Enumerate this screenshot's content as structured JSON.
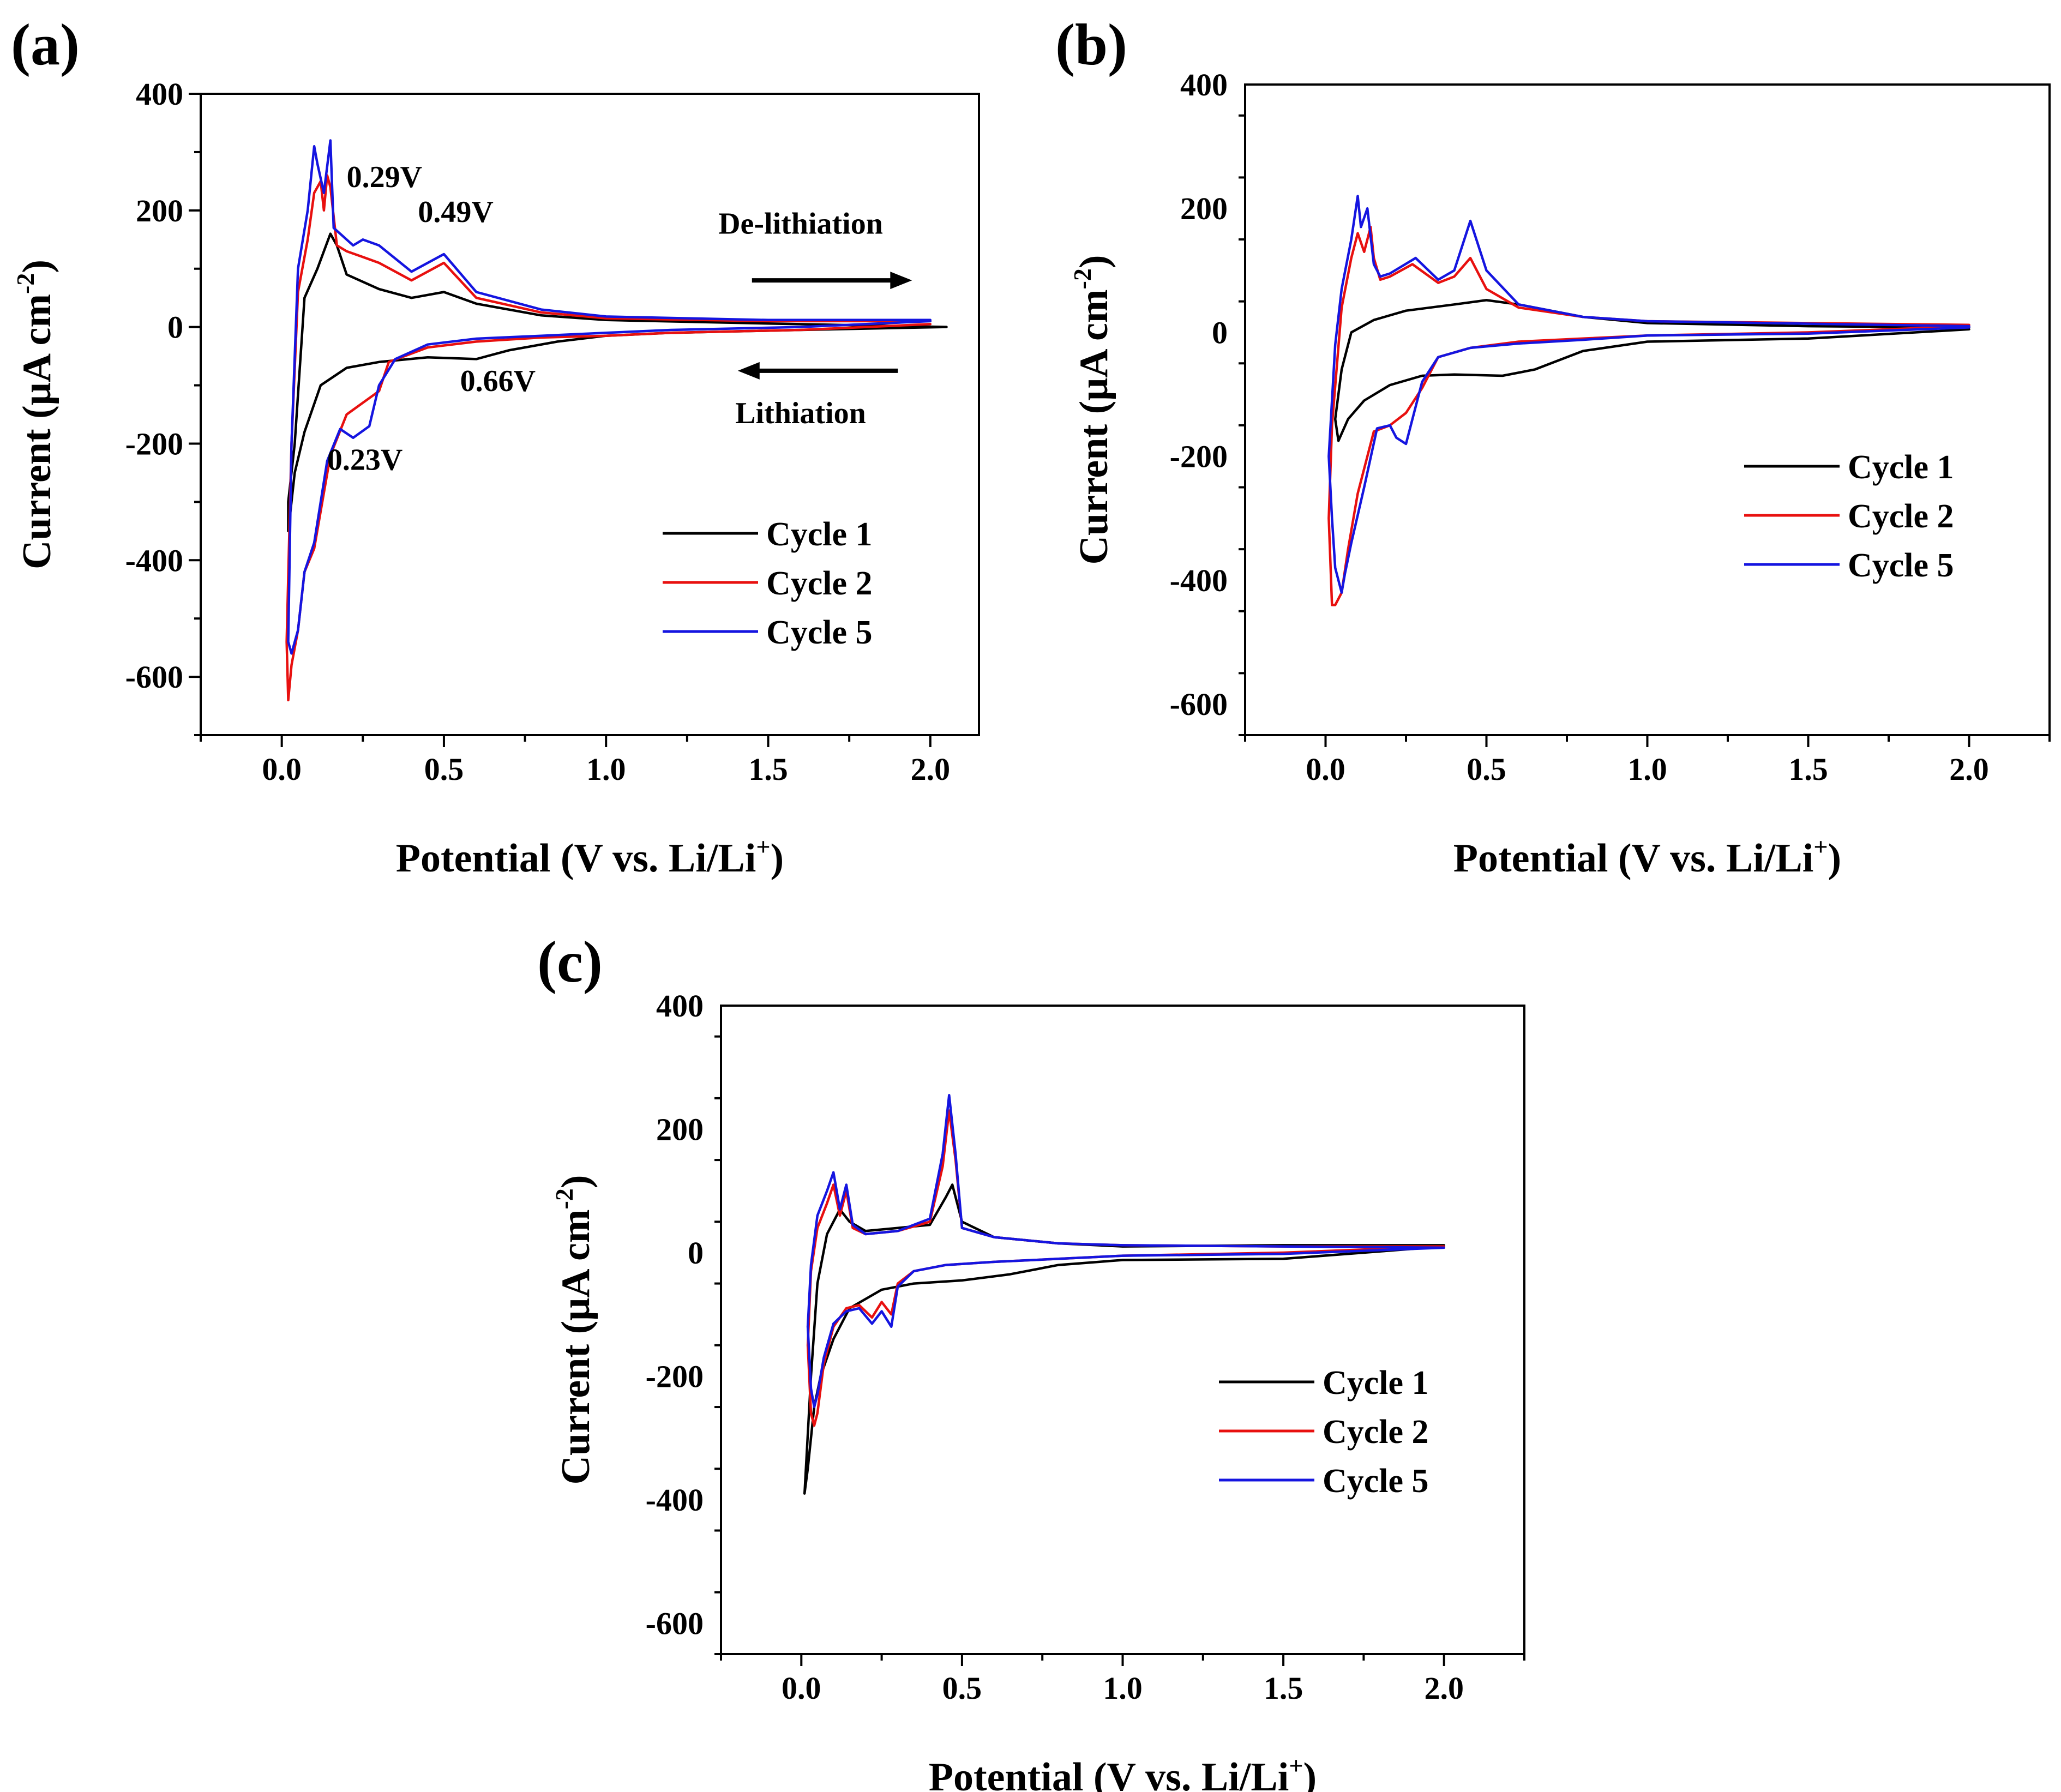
{
  "figure": {
    "x_title_prefix": "Potential (V vs. Li/Li",
    "x_title_sup": "+",
    "x_title_suffix": ")",
    "y_title_prefix": "Current (μA cm",
    "y_title_sup": "-2",
    "y_title_suffix": ")"
  },
  "colors": {
    "Cycle 1": "#000000",
    "Cycle 2": "#e8100f",
    "Cycle 5": "#1515e0"
  },
  "chart_data": [
    {
      "panel": "(a)",
      "type": "line",
      "xlabel": "Potential (V vs. Li/Li+)",
      "ylabel": "Current (μA cm-2)",
      "xlim": [
        -0.25,
        2.15
      ],
      "ylim": [
        -700,
        400
      ],
      "xticks": [
        "0.0",
        "0.5",
        "1.0",
        "1.5",
        "2.0"
      ],
      "xtick_values": [
        0,
        0.5,
        1.0,
        1.5,
        2.0
      ],
      "yticks": [
        "400",
        "200",
        "0",
        "-200",
        "-400",
        "-600"
      ],
      "ytick_values": [
        400,
        200,
        0,
        -200,
        -400,
        -600
      ],
      "legend": [
        "Cycle 1",
        "Cycle 2",
        "Cycle 5"
      ],
      "legend_position": "lower-right",
      "annotations": [
        {
          "text": "0.29V",
          "x": 0.2,
          "y": 240
        },
        {
          "text": "0.49V",
          "x": 0.42,
          "y": 180
        },
        {
          "text": "0.66V",
          "x": 0.55,
          "y": -110
        },
        {
          "text": "0.23V",
          "x": 0.14,
          "y": -245
        },
        {
          "text": "De-lithiation",
          "x": 1.6,
          "y": 160
        },
        {
          "text": "Lithiation",
          "x": 1.6,
          "y": -165
        }
      ],
      "arrows": [
        {
          "direction": "right",
          "x_from": 1.45,
          "x_to": 1.9,
          "y": 80
        },
        {
          "direction": "left",
          "x_from": 1.9,
          "x_to": 1.45,
          "y": -75
        }
      ],
      "series": [
        {
          "name": "Cycle 1",
          "x": [
            2.05,
            1.6,
            1.2,
            1.0,
            0.85,
            0.7,
            0.6,
            0.45,
            0.3,
            0.2,
            0.12,
            0.07,
            0.04,
            0.02,
            0.02,
            0.04,
            0.07,
            0.11,
            0.15,
            0.17,
            0.2,
            0.3,
            0.4,
            0.5,
            0.6,
            0.8,
            1.0,
            1.5,
            2.05
          ],
          "y": [
            0,
            -5,
            -10,
            -15,
            -25,
            -40,
            -55,
            -52,
            -60,
            -70,
            -100,
            -180,
            -250,
            -350,
            -300,
            -200,
            50,
            100,
            160,
            140,
            90,
            65,
            50,
            60,
            40,
            20,
            12,
            6,
            0
          ]
        },
        {
          "name": "Cycle 2",
          "x": [
            2.0,
            1.6,
            1.2,
            1.0,
            0.8,
            0.6,
            0.45,
            0.33,
            0.3,
            0.25,
            0.2,
            0.15,
            0.1,
            0.07,
            0.05,
            0.03,
            0.02,
            0.015,
            0.03,
            0.05,
            0.08,
            0.1,
            0.12,
            0.13,
            0.14,
            0.15,
            0.17,
            0.2,
            0.25,
            0.3,
            0.4,
            0.5,
            0.6,
            0.8,
            1.0,
            1.5,
            2.0
          ],
          "y": [
            5,
            -5,
            -10,
            -15,
            -18,
            -25,
            -35,
            -60,
            -110,
            -130,
            -150,
            -220,
            -380,
            -420,
            -520,
            -580,
            -640,
            -540,
            -200,
            60,
            150,
            230,
            250,
            200,
            260,
            240,
            140,
            130,
            120,
            110,
            80,
            110,
            50,
            25,
            15,
            10,
            10
          ]
        },
        {
          "name": "Cycle 5",
          "x": [
            2.0,
            1.6,
            1.2,
            1.0,
            0.8,
            0.6,
            0.45,
            0.35,
            0.3,
            0.27,
            0.22,
            0.18,
            0.14,
            0.1,
            0.07,
            0.05,
            0.03,
            0.02,
            0.03,
            0.05,
            0.08,
            0.1,
            0.11,
            0.13,
            0.15,
            0.16,
            0.18,
            0.22,
            0.25,
            0.3,
            0.4,
            0.5,
            0.6,
            0.8,
            1.0,
            1.5,
            2.0
          ],
          "y": [
            10,
            0,
            -5,
            -10,
            -15,
            -20,
            -30,
            -55,
            -100,
            -170,
            -190,
            -175,
            -230,
            -370,
            -420,
            -520,
            -560,
            -540,
            -200,
            100,
            200,
            310,
            280,
            230,
            320,
            170,
            160,
            140,
            150,
            140,
            95,
            125,
            60,
            30,
            18,
            12,
            12
          ]
        }
      ]
    },
    {
      "panel": "(b)",
      "type": "line",
      "xlabel": "Potential (V vs. Li/Li+)",
      "ylabel": "Current (μA cm-2)",
      "xlim": [
        -0.25,
        2.25
      ],
      "ylim": [
        -650,
        400
      ],
      "xticks": [
        "0.0",
        "0.5",
        "1.0",
        "1.5",
        "2.0"
      ],
      "xtick_values": [
        0,
        0.5,
        1.0,
        1.5,
        2.0
      ],
      "yticks": [
        "400",
        "200",
        "0",
        "-200",
        "-400",
        "-600"
      ],
      "ytick_values": [
        400,
        200,
        0,
        -200,
        -400,
        -600
      ],
      "legend": [
        "Cycle 1",
        "Cycle 2",
        "Cycle 5"
      ],
      "legend_position": "right",
      "series": [
        {
          "name": "Cycle 1",
          "x": [
            2.0,
            1.5,
            1.0,
            0.8,
            0.65,
            0.55,
            0.4,
            0.3,
            0.2,
            0.12,
            0.07,
            0.04,
            0.03,
            0.05,
            0.08,
            0.15,
            0.25,
            0.4,
            0.5,
            0.6,
            0.8,
            1.0,
            1.5,
            2.0
          ],
          "y": [
            5,
            -10,
            -15,
            -30,
            -60,
            -70,
            -68,
            -70,
            -85,
            -110,
            -140,
            -175,
            -140,
            -60,
            0,
            20,
            35,
            45,
            52,
            45,
            25,
            15,
            10,
            8
          ]
        },
        {
          "name": "Cycle 2",
          "x": [
            2.0,
            1.5,
            1.0,
            0.8,
            0.6,
            0.45,
            0.35,
            0.3,
            0.25,
            0.2,
            0.15,
            0.1,
            0.07,
            0.05,
            0.03,
            0.02,
            0.01,
            0.02,
            0.05,
            0.08,
            0.1,
            0.12,
            0.14,
            0.15,
            0.17,
            0.2,
            0.27,
            0.35,
            0.4,
            0.45,
            0.5,
            0.6,
            0.8,
            1.0,
            1.5,
            2.0
          ],
          "y": [
            10,
            0,
            -5,
            -10,
            -15,
            -25,
            -40,
            -90,
            -130,
            -150,
            -160,
            -260,
            -350,
            -420,
            -440,
            -440,
            -300,
            -150,
            40,
            120,
            160,
            130,
            170,
            120,
            85,
            90,
            110,
            80,
            90,
            120,
            70,
            40,
            25,
            18,
            15,
            12
          ]
        },
        {
          "name": "Cycle 5",
          "x": [
            2.0,
            1.5,
            1.0,
            0.8,
            0.6,
            0.45,
            0.35,
            0.3,
            0.25,
            0.22,
            0.2,
            0.16,
            0.12,
            0.08,
            0.06,
            0.05,
            0.03,
            0.02,
            0.01,
            0.03,
            0.05,
            0.08,
            0.1,
            0.11,
            0.13,
            0.15,
            0.17,
            0.2,
            0.28,
            0.35,
            0.4,
            0.45,
            0.5,
            0.6,
            0.8,
            1.0,
            1.5,
            2.0
          ],
          "y": [
            8,
            -2,
            -5,
            -12,
            -18,
            -25,
            -40,
            -80,
            -180,
            -170,
            -150,
            -155,
            -250,
            -340,
            -390,
            -420,
            -380,
            -300,
            -200,
            -20,
            70,
            150,
            220,
            170,
            200,
            110,
            90,
            95,
            120,
            85,
            100,
            180,
            100,
            45,
            25,
            18,
            14,
            10
          ]
        }
      ]
    },
    {
      "panel": "(c)",
      "type": "line",
      "xlabel": "Potential (V vs. Li/Li+)",
      "ylabel": "Current (μA cm-2)",
      "xlim": [
        -0.25,
        2.25
      ],
      "ylim": [
        -650,
        400
      ],
      "xticks": [
        "0.0",
        "0.5",
        "1.0",
        "1.5",
        "2.0"
      ],
      "xtick_values": [
        0,
        0.5,
        1.0,
        1.5,
        2.0
      ],
      "yticks": [
        "400",
        "200",
        "0",
        "-200",
        "-400",
        "-600"
      ],
      "ytick_values": [
        400,
        200,
        0,
        -200,
        -400,
        -600
      ],
      "legend": [
        "Cycle 1",
        "Cycle 2",
        "Cycle 5"
      ],
      "legend_position": "lower-right",
      "series": [
        {
          "name": "Cycle 1",
          "x": [
            2.0,
            1.5,
            1.0,
            0.8,
            0.65,
            0.5,
            0.35,
            0.25,
            0.15,
            0.1,
            0.06,
            0.04,
            0.03,
            0.02,
            0.01,
            0.03,
            0.05,
            0.08,
            0.12,
            0.15,
            0.2,
            0.3,
            0.4,
            0.45,
            0.47,
            0.5,
            0.6,
            0.8,
            1.0,
            1.5,
            2.0
          ],
          "y": [
            10,
            -10,
            -12,
            -20,
            -35,
            -45,
            -50,
            -60,
            -90,
            -140,
            -200,
            -250,
            -300,
            -350,
            -390,
            -200,
            -50,
            30,
            70,
            50,
            35,
            40,
            45,
            90,
            110,
            50,
            25,
            15,
            10,
            12,
            12
          ]
        },
        {
          "name": "Cycle 2",
          "x": [
            2.0,
            1.5,
            1.0,
            0.8,
            0.6,
            0.45,
            0.35,
            0.3,
            0.28,
            0.25,
            0.22,
            0.18,
            0.14,
            0.1,
            0.07,
            0.05,
            0.04,
            0.03,
            0.02,
            0.03,
            0.05,
            0.08,
            0.1,
            0.12,
            0.14,
            0.16,
            0.2,
            0.3,
            0.4,
            0.44,
            0.46,
            0.48,
            0.5,
            0.6,
            0.8,
            1.0,
            1.5,
            2.0
          ],
          "y": [
            10,
            0,
            -5,
            -10,
            -15,
            -20,
            -30,
            -50,
            -100,
            -80,
            -105,
            -85,
            -90,
            -120,
            -180,
            -260,
            -280,
            -260,
            -150,
            -30,
            40,
            80,
            110,
            60,
            100,
            40,
            30,
            35,
            50,
            140,
            230,
            150,
            40,
            25,
            15,
            12,
            10,
            10
          ]
        },
        {
          "name": "Cycle 5",
          "x": [
            2.0,
            1.5,
            1.0,
            0.8,
            0.6,
            0.45,
            0.35,
            0.3,
            0.28,
            0.25,
            0.22,
            0.18,
            0.14,
            0.1,
            0.07,
            0.05,
            0.04,
            0.03,
            0.02,
            0.03,
            0.05,
            0.08,
            0.1,
            0.12,
            0.14,
            0.16,
            0.2,
            0.3,
            0.4,
            0.44,
            0.46,
            0.48,
            0.5,
            0.6,
            0.8,
            1.0,
            1.5,
            2.0
          ],
          "y": [
            8,
            -2,
            -5,
            -10,
            -15,
            -20,
            -30,
            -55,
            -120,
            -95,
            -115,
            -90,
            -95,
            -115,
            -170,
            -230,
            -250,
            -220,
            -120,
            -20,
            60,
            100,
            130,
            70,
            110,
            45,
            30,
            35,
            55,
            160,
            255,
            160,
            40,
            25,
            15,
            12,
            10,
            8
          ]
        }
      ]
    }
  ]
}
